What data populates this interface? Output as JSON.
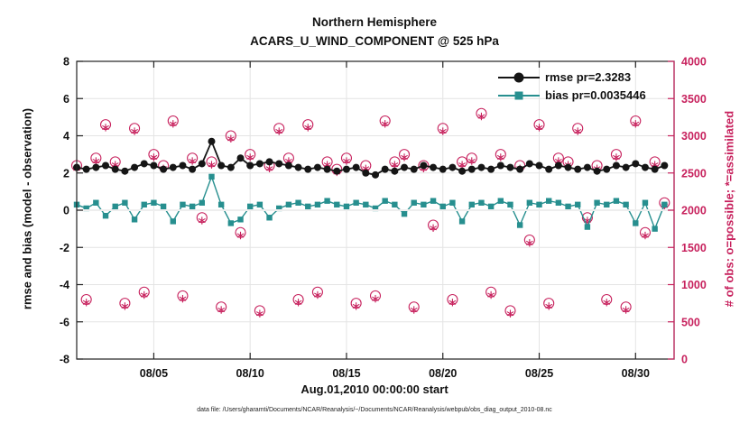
{
  "title": {
    "line1": "Northern Hemisphere",
    "line2": "ACARS_U_WIND_COMPONENT @ 525 hPa"
  },
  "axes": {
    "xlabel": "Aug.01,2010 00:00:00 start",
    "ylabel_left": "rmse and bias (model - observation)",
    "ylabel_right": "# of obs: o=possible; *=assimilated"
  },
  "legend": {
    "rmse": "rmse pr=2.3283",
    "bias": "bias pr=0.0035446"
  },
  "caption": "data file: /Users/gharamti/Documents/NCAR/Reanalysis/~/Documents/NCAR/Reanalysis/webpub/obs_diag_output_2010-08.nc",
  "colors": {
    "pink": "#c7215d",
    "teal": "#278f8f",
    "black": "#151515",
    "grid": "#e4e4e4"
  },
  "chart_data": {
    "type": "line",
    "title": "Northern Hemisphere — ACARS_U_WIND_COMPONENT @ 525 hPa",
    "xlabel": "Aug.01,2010 00:00:00 start",
    "ylabel_left": "rmse and bias (model - observation)",
    "ylabel_right": "# of obs: o=possible; *=assimilated",
    "grid": true,
    "legend_position": "top-right-inside",
    "xlim": [
      1,
      32
    ],
    "xticks": [
      {
        "v": 5,
        "label": "08/05"
      },
      {
        "v": 10,
        "label": "08/10"
      },
      {
        "v": 15,
        "label": "08/15"
      },
      {
        "v": 20,
        "label": "08/20"
      },
      {
        "v": 25,
        "label": "08/25"
      },
      {
        "v": 30,
        "label": "08/30"
      }
    ],
    "ylim_left": [
      -8,
      8
    ],
    "yticks_left": [
      -8,
      -6,
      -4,
      -2,
      0,
      2,
      4,
      6,
      8
    ],
    "ylim_right": [
      0,
      4000
    ],
    "yticks_right": [
      0,
      500,
      1000,
      1500,
      2000,
      2500,
      3000,
      3500,
      4000
    ],
    "x": [
      1,
      1.5,
      2,
      2.5,
      3,
      3.5,
      4,
      4.5,
      5,
      5.5,
      6,
      6.5,
      7,
      7.5,
      8,
      8.5,
      9,
      9.5,
      10,
      10.5,
      11,
      11.5,
      12,
      12.5,
      13,
      13.5,
      14,
      14.5,
      15,
      15.5,
      16,
      16.5,
      17,
      17.5,
      18,
      18.5,
      19,
      19.5,
      20,
      20.5,
      21,
      21.5,
      22,
      22.5,
      23,
      23.5,
      24,
      24.5,
      25,
      25.5,
      26,
      26.5,
      27,
      27.5,
      28,
      28.5,
      29,
      29.5,
      30,
      30.5,
      31,
      31.5
    ],
    "series": [
      {
        "id": "rmse",
        "name": "rmse pr=2.3283",
        "axis": "left",
        "marker": "filled-circle",
        "color": "#151515",
        "values": [
          2.3,
          2.2,
          2.3,
          2.4,
          2.2,
          2.1,
          2.3,
          2.5,
          2.4,
          2.2,
          2.3,
          2.4,
          2.2,
          2.5,
          3.7,
          2.4,
          2.3,
          2.8,
          2.4,
          2.5,
          2.6,
          2.5,
          2.4,
          2.3,
          2.2,
          2.3,
          2.2,
          2.1,
          2.2,
          2.3,
          2.0,
          1.9,
          2.2,
          2.1,
          2.3,
          2.2,
          2.4,
          2.3,
          2.2,
          2.3,
          2.1,
          2.2,
          2.3,
          2.2,
          2.4,
          2.3,
          2.2,
          2.5,
          2.4,
          2.2,
          2.4,
          2.3,
          2.2,
          2.3,
          2.1,
          2.2,
          2.4,
          2.3,
          2.5,
          2.3,
          2.2,
          2.4
        ]
      },
      {
        "id": "bias",
        "name": "bias pr=0.0035446",
        "axis": "left",
        "marker": "filled-square",
        "color": "#278f8f",
        "values": [
          0.3,
          0.1,
          0.4,
          -0.3,
          0.2,
          0.4,
          -0.5,
          0.3,
          0.4,
          0.2,
          -0.6,
          0.3,
          0.2,
          0.4,
          1.8,
          0.3,
          -0.7,
          -0.5,
          0.2,
          0.3,
          -0.4,
          0.1,
          0.3,
          0.4,
          0.2,
          0.3,
          0.5,
          0.3,
          0.2,
          0.4,
          0.3,
          0.1,
          0.5,
          0.3,
          -0.2,
          0.4,
          0.3,
          0.5,
          0.2,
          0.4,
          -0.6,
          0.3,
          0.4,
          0.2,
          0.5,
          0.3,
          -0.8,
          0.4,
          0.3,
          0.5,
          0.4,
          0.2,
          0.3,
          -0.9,
          0.4,
          0.3,
          0.5,
          0.3,
          -0.7,
          0.4,
          -1.0,
          0.3
        ]
      },
      {
        "id": "possible",
        "name": "# of obs possible (o)",
        "axis": "right",
        "marker": "open-circle",
        "color": "#c7215d",
        "values": [
          2600,
          800,
          2700,
          3150,
          2650,
          750,
          3100,
          900,
          2750,
          2600,
          3200,
          850,
          2700,
          1900,
          2650,
          700,
          3000,
          1700,
          2750,
          650,
          2600,
          3100,
          2700,
          800,
          3150,
          900,
          2650,
          2550,
          2700,
          750,
          2600,
          850,
          3200,
          2650,
          2750,
          700,
          2600,
          1800,
          3100,
          800,
          2650,
          2700,
          3300,
          900,
          2750,
          650,
          2600,
          1600,
          3150,
          750,
          2700,
          2650,
          3100,
          1900,
          2600,
          800,
          2750,
          700,
          3200,
          1700,
          2650,
          2100
        ]
      },
      {
        "id": "assimilated",
        "name": "# of obs assimilated (*)",
        "axis": "right",
        "marker": "asterisk",
        "color": "#c7215d",
        "values": [
          2560,
          760,
          2660,
          3110,
          2610,
          710,
          3060,
          860,
          2710,
          2560,
          3160,
          810,
          2660,
          1860,
          2610,
          660,
          2960,
          1660,
          2710,
          610,
          2560,
          3060,
          2660,
          760,
          3110,
          860,
          2610,
          2510,
          2660,
          710,
          2560,
          810,
          3160,
          2610,
          2710,
          660,
          2560,
          1760,
          3060,
          760,
          2610,
          2660,
          3260,
          860,
          2710,
          610,
          2560,
          1560,
          3110,
          710,
          2660,
          2610,
          3060,
          1860,
          2560,
          760,
          2710,
          660,
          3160,
          1660,
          2610,
          2060
        ]
      }
    ]
  }
}
